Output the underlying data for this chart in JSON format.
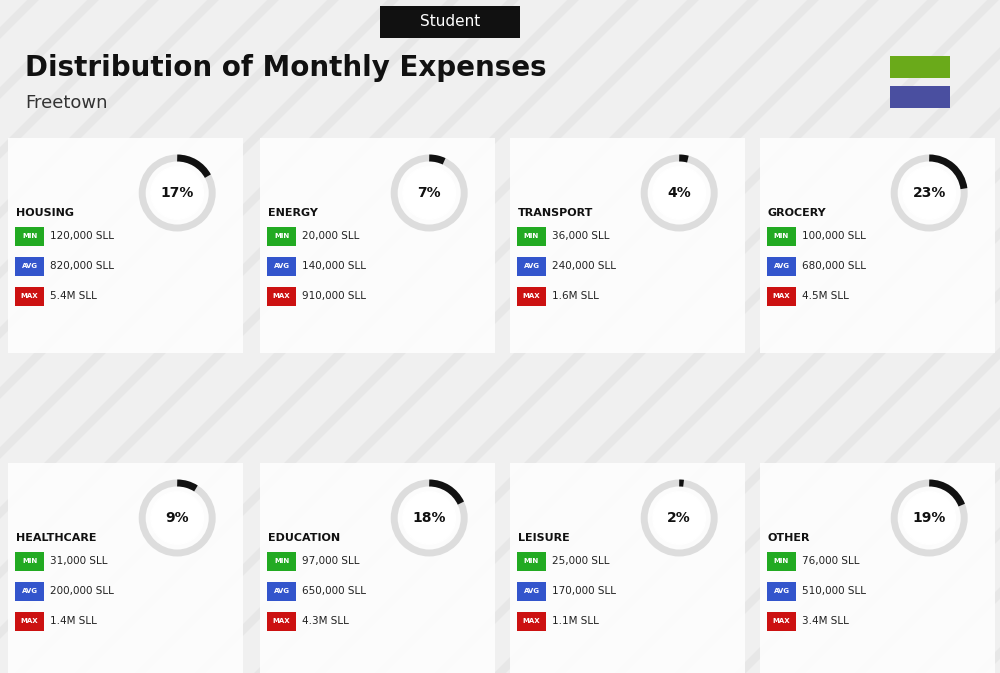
{
  "title": "Distribution of Monthly Expenses",
  "subtitle": "Student",
  "location": "Freetown",
  "bg_color": "#f0f0f0",
  "header_bg": "#111111",
  "header_text_color": "#ffffff",
  "title_color": "#111111",
  "location_color": "#333333",
  "legend_colors": [
    "#6aaa1a",
    "#4a4fa0"
  ],
  "categories": [
    {
      "name": "HOUSING",
      "pct": 17,
      "min": "120,000 SLL",
      "avg": "820,000 SLL",
      "max": "5.4M SLL",
      "icon": "housing",
      "row": 0,
      "col": 0
    },
    {
      "name": "ENERGY",
      "pct": 7,
      "min": "20,000 SLL",
      "avg": "140,000 SLL",
      "max": "910,000 SLL",
      "icon": "energy",
      "row": 0,
      "col": 1
    },
    {
      "name": "TRANSPORT",
      "pct": 4,
      "min": "36,000 SLL",
      "avg": "240,000 SLL",
      "max": "1.6M SLL",
      "icon": "transport",
      "row": 0,
      "col": 2
    },
    {
      "name": "GROCERY",
      "pct": 23,
      "min": "100,000 SLL",
      "avg": "680,000 SLL",
      "max": "4.5M SLL",
      "icon": "grocery",
      "row": 0,
      "col": 3
    },
    {
      "name": "HEALTHCARE",
      "pct": 9,
      "min": "31,000 SLL",
      "avg": "200,000 SLL",
      "max": "1.4M SLL",
      "icon": "healthcare",
      "row": 1,
      "col": 0
    },
    {
      "name": "EDUCATION",
      "pct": 18,
      "min": "97,000 SLL",
      "avg": "650,000 SLL",
      "max": "4.3M SLL",
      "icon": "education",
      "row": 1,
      "col": 1
    },
    {
      "name": "LEISURE",
      "pct": 2,
      "min": "25,000 SLL",
      "avg": "170,000 SLL",
      "max": "1.1M SLL",
      "icon": "leisure",
      "row": 1,
      "col": 2
    },
    {
      "name": "OTHER",
      "pct": 19,
      "min": "76,000 SLL",
      "avg": "510,000 SLL",
      "max": "3.4M SLL",
      "icon": "other",
      "row": 1,
      "col": 3
    }
  ],
  "min_color": "#22aa22",
  "avg_color": "#3355cc",
  "max_color": "#cc1111",
  "label_text_color": "#ffffff",
  "value_text_color": "#222222",
  "cat_name_color": "#111111",
  "pct_color": "#111111",
  "donut_bg": "#dddddd",
  "donut_fg": "#111111",
  "card_bg": "#ffffff",
  "stripe_color": "#e0e0e0"
}
